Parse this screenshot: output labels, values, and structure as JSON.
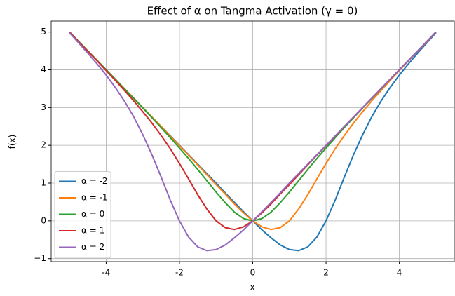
{
  "chart_data": {
    "type": "line",
    "title": "Effect of α on Tangma Activation (γ = 0)",
    "xlabel": "x",
    "ylabel": "f(x)",
    "x": [
      -5,
      -4.75,
      -4.5,
      -4.25,
      -4,
      -3.75,
      -3.5,
      -3.25,
      -3,
      -2.75,
      -2.5,
      -2.25,
      -2,
      -1.75,
      -1.5,
      -1.25,
      -1,
      -0.75,
      -0.5,
      -0.25,
      0,
      0.25,
      0.5,
      0.75,
      1,
      1.25,
      1.5,
      1.75,
      2,
      2.25,
      2.5,
      2.75,
      3,
      3.25,
      3.5,
      3.75,
      4,
      4.25,
      4.5,
      4.75,
      5
    ],
    "series": [
      {
        "name": "α = -2",
        "color": "#1f77b4",
        "values": [
          5,
          4.75,
          4.5,
          4.25,
          4,
          3.75,
          3.5,
          3.25,
          3,
          2.75,
          2.5,
          2.25,
          2,
          1.75,
          1.5,
          1.25,
          1,
          0.74,
          0.49,
          0.24,
          0,
          -0.24,
          -0.45,
          -0.64,
          -0.76,
          -0.79,
          -0.69,
          -0.43,
          0,
          0.55,
          1.16,
          1.75,
          2.28,
          2.76,
          3.17,
          3.53,
          3.86,
          4.16,
          4.44,
          4.71,
          4.98
        ]
      },
      {
        "name": "α = -1",
        "color": "#ff7f0e",
        "values": [
          5,
          4.75,
          4.5,
          4.25,
          4,
          3.75,
          3.5,
          3.25,
          3,
          2.75,
          2.5,
          2.24,
          1.99,
          1.74,
          1.48,
          1.22,
          0.96,
          0.71,
          0.45,
          0.21,
          0,
          -0.16,
          -0.23,
          -0.18,
          0,
          0.31,
          0.69,
          1.11,
          1.52,
          1.91,
          2.26,
          2.59,
          2.89,
          3.18,
          3.45,
          3.72,
          3.98,
          4.24,
          4.49,
          4.74,
          5
        ]
      },
      {
        "name": "α = 0",
        "color": "#2ca02c",
        "values": [
          5,
          4.75,
          4.5,
          4.25,
          4,
          3.75,
          3.49,
          3.24,
          2.99,
          2.73,
          2.47,
          2.2,
          1.93,
          1.65,
          1.36,
          1.06,
          0.76,
          0.48,
          0.23,
          0.06,
          0,
          0.06,
          0.23,
          0.48,
          0.76,
          1.06,
          1.36,
          1.65,
          1.93,
          2.2,
          2.47,
          2.73,
          2.99,
          3.24,
          3.49,
          3.75,
          4,
          4.25,
          4.5,
          4.75,
          5
        ]
      },
      {
        "name": "α = 1",
        "color": "#d62728",
        "values": [
          5,
          4.74,
          4.49,
          4.24,
          3.98,
          3.72,
          3.45,
          3.18,
          2.89,
          2.59,
          2.26,
          1.91,
          1.52,
          1.11,
          0.69,
          0.31,
          0,
          -0.18,
          -0.23,
          -0.16,
          0,
          0.21,
          0.45,
          0.71,
          0.96,
          1.22,
          1.48,
          1.74,
          1.99,
          2.24,
          2.5,
          2.75,
          3,
          3.25,
          3.5,
          3.75,
          4,
          4.25,
          4.5,
          4.75,
          5
        ]
      },
      {
        "name": "α = 2",
        "color": "#9467bd",
        "values": [
          4.98,
          4.71,
          4.44,
          4.16,
          3.86,
          3.53,
          3.17,
          2.76,
          2.28,
          1.75,
          1.16,
          0.55,
          0,
          -0.43,
          -0.69,
          -0.79,
          -0.76,
          -0.64,
          -0.45,
          -0.24,
          0,
          0.24,
          0.49,
          0.74,
          1,
          1.25,
          1.5,
          1.75,
          2,
          2.25,
          2.5,
          2.75,
          3,
          3.25,
          3.5,
          3.75,
          4,
          4.25,
          4.5,
          4.75,
          5
        ]
      }
    ],
    "xlim": [
      -5.5,
      5.5
    ],
    "xticks": [
      -4,
      -2,
      0,
      2,
      4
    ],
    "ylim": [
      -1.08,
      5.29
    ],
    "yticks": [
      {
        "value": -1,
        "label": "−1"
      },
      0,
      1,
      2,
      3,
      4,
      5
    ],
    "grid": true,
    "legend": "lower left"
  }
}
